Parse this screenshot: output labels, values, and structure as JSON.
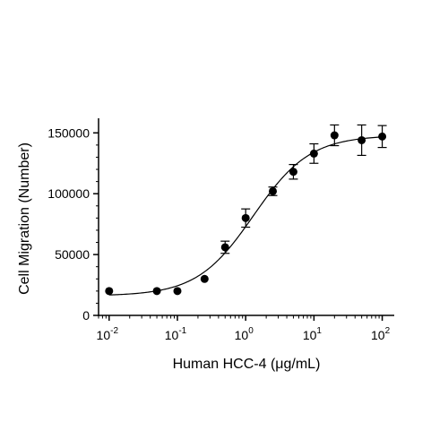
{
  "chart_data": {
    "type": "scatter",
    "xlabel": "Human HCC-4 (μg/mL)",
    "ylabel": "Cell Migration (Number)",
    "x_scale": "log",
    "xlim": [
      0.007,
      150
    ],
    "ylim": [
      0,
      162000
    ],
    "x_ticks": [
      {
        "value": 0.01,
        "base": "10",
        "exp": "-2"
      },
      {
        "value": 0.1,
        "base": "10",
        "exp": "-1"
      },
      {
        "value": 1,
        "base": "10",
        "exp": "0"
      },
      {
        "value": 10,
        "base": "10",
        "exp": "1"
      },
      {
        "value": 100,
        "base": "10",
        "exp": "2"
      }
    ],
    "y_ticks": [
      {
        "value": 0,
        "label": "0"
      },
      {
        "value": 50000,
        "label": "50000"
      },
      {
        "value": 100000,
        "label": "100000"
      },
      {
        "value": 150000,
        "label": "150000"
      }
    ],
    "points": [
      {
        "x": 0.01,
        "y": 20000,
        "err": 0
      },
      {
        "x": 0.05,
        "y": 20000,
        "err": 0
      },
      {
        "x": 0.1,
        "y": 20000,
        "err": 0
      },
      {
        "x": 0.25,
        "y": 30000,
        "err": 0
      },
      {
        "x": 0.5,
        "y": 56000,
        "err": 5000
      },
      {
        "x": 1,
        "y": 80000,
        "err": 7500
      },
      {
        "x": 2.5,
        "y": 102000,
        "err": 3500
      },
      {
        "x": 5,
        "y": 118000,
        "err": 6000
      },
      {
        "x": 10,
        "y": 133000,
        "err": 8000
      },
      {
        "x": 20,
        "y": 148000,
        "err": 8500
      },
      {
        "x": 50,
        "y": 144000,
        "err": 12500
      },
      {
        "x": 100,
        "y": 147000,
        "err": 9000
      }
    ],
    "fit_curve": {
      "type": "4PL",
      "bottom": 16000,
      "top": 148000,
      "ec50": 1.3,
      "hill": 1.05
    },
    "grid": false,
    "legend": "none"
  }
}
